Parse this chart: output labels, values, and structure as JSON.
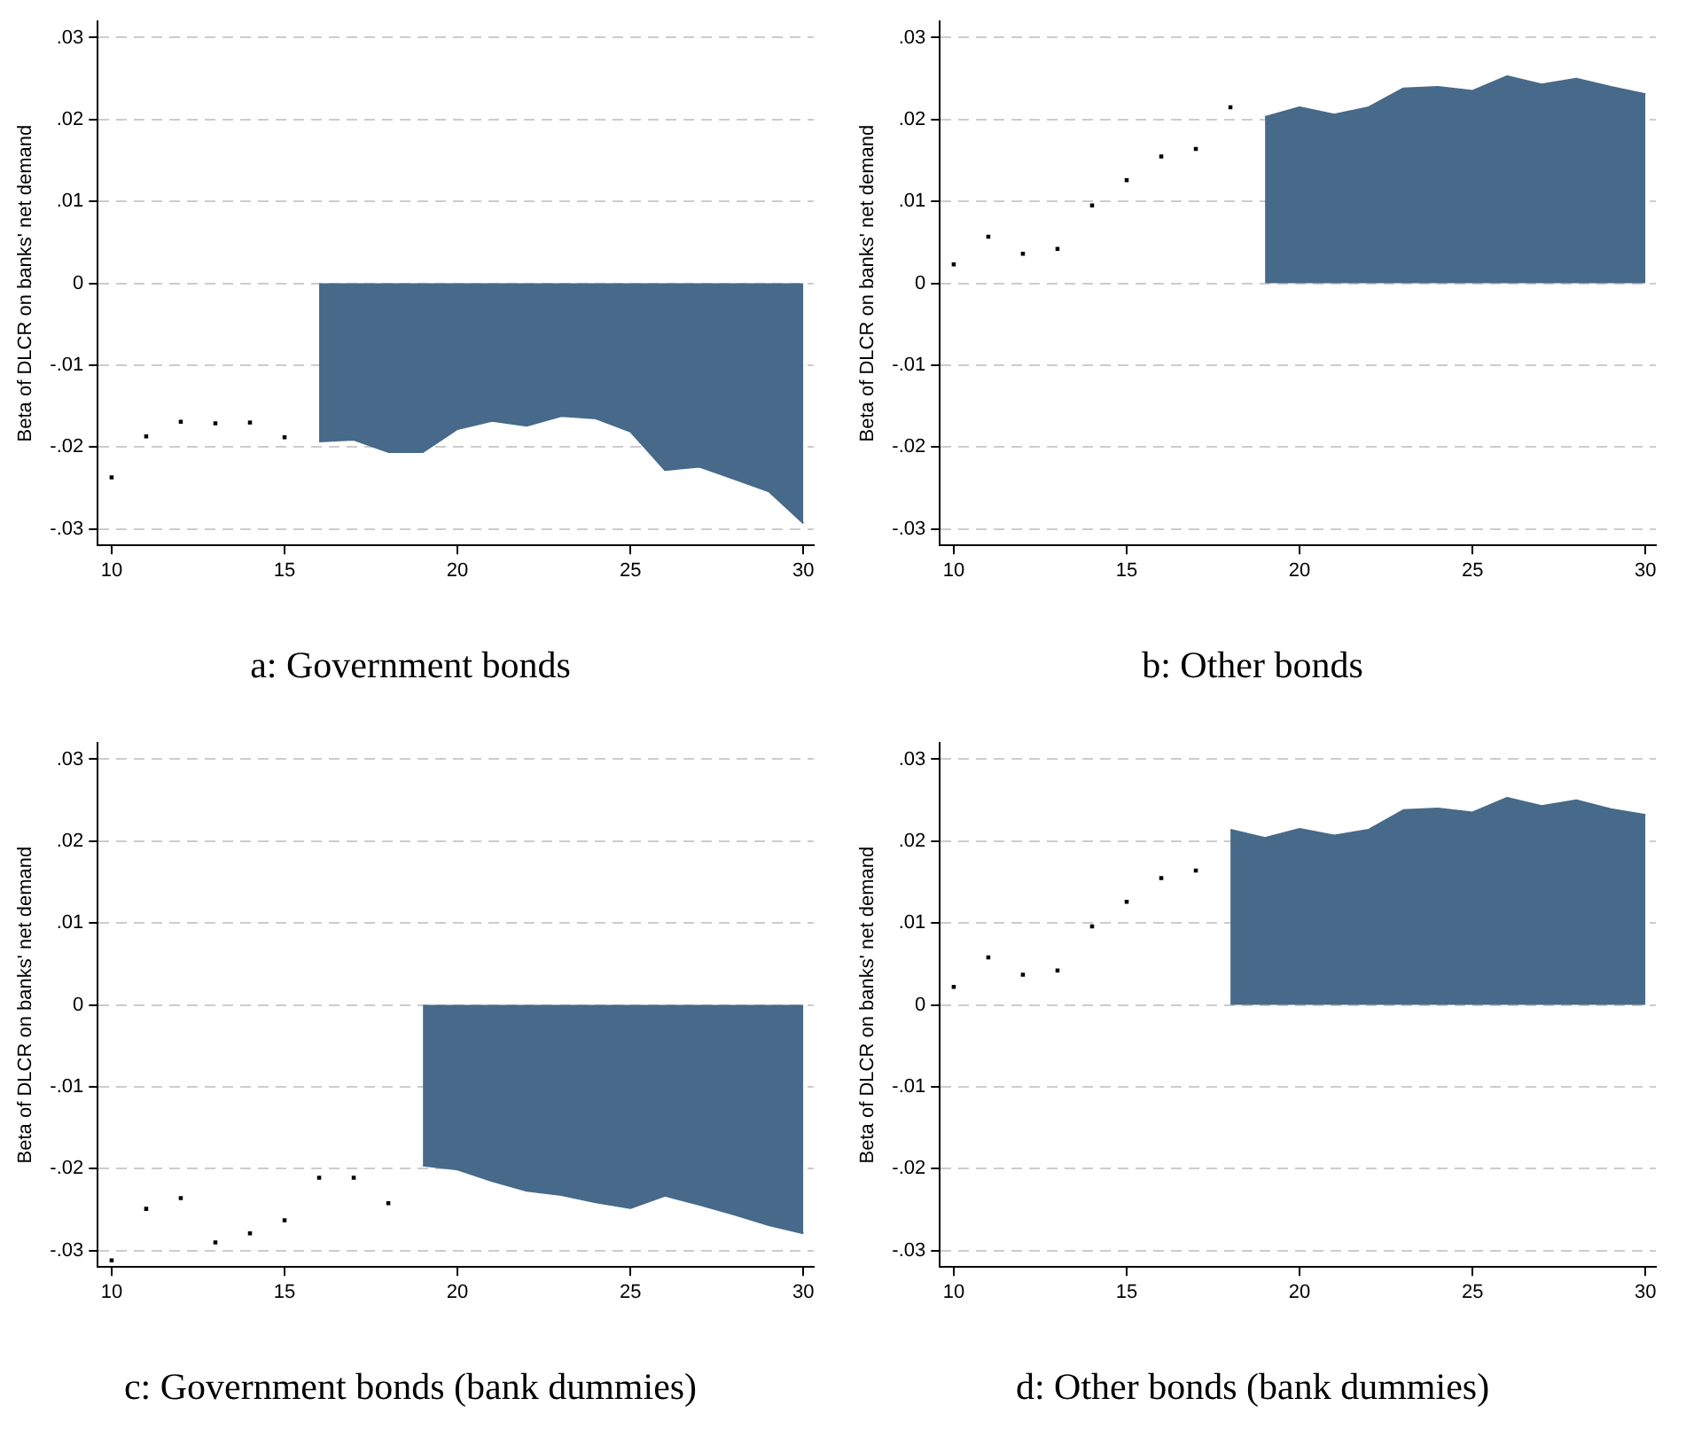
{
  "chart_data": [
    {
      "type": "area",
      "title": "a: Government bonds",
      "ylabel": "Beta of DLCR on banks' net demand",
      "xlim": [
        9.6,
        30.3
      ],
      "xticks": [
        10,
        15,
        20,
        25,
        30
      ],
      "ylim": [
        -0.032,
        0.032
      ],
      "yticks": [
        {
          "value": -0.03,
          "label": "-.03"
        },
        {
          "value": -0.02,
          "label": "-.02"
        },
        {
          "value": -0.01,
          "label": "-.01"
        },
        {
          "value": 0,
          "label": "0"
        },
        {
          "value": 0.01,
          "label": ".01"
        },
        {
          "value": 0.02,
          "label": ".02"
        },
        {
          "value": 0.03,
          "label": ".03"
        }
      ],
      "grid": "y",
      "series": [
        {
          "type": "scatter",
          "marker": "square",
          "color": "#000000",
          "x": [
            10,
            11,
            12,
            13,
            14,
            15
          ],
          "values": [
            -0.0237,
            -0.0187,
            -0.0169,
            -0.0171,
            -0.017,
            -0.0188
          ]
        },
        {
          "type": "area",
          "color": "#476a8a",
          "x": [
            16,
            17,
            18,
            19,
            20,
            21,
            22,
            23,
            24,
            25,
            26,
            27,
            28,
            29,
            30
          ],
          "values": [
            -0.0193,
            -0.0191,
            -0.0206,
            -0.0206,
            -0.0178,
            -0.0168,
            -0.0174,
            -0.0162,
            -0.0165,
            -0.0181,
            -0.0228,
            -0.0224,
            -0.0239,
            -0.0254,
            -0.0293
          ]
        }
      ]
    },
    {
      "type": "area",
      "title": "b: Other bonds",
      "ylabel": "Beta of DLCR on banks' net demand",
      "xlim": [
        9.6,
        30.3
      ],
      "xticks": [
        10,
        15,
        20,
        25,
        30
      ],
      "ylim": [
        -0.032,
        0.032
      ],
      "yticks": [
        {
          "value": -0.03,
          "label": "-.03"
        },
        {
          "value": -0.02,
          "label": "-.02"
        },
        {
          "value": -0.01,
          "label": "-.01"
        },
        {
          "value": 0,
          "label": "0"
        },
        {
          "value": 0.01,
          "label": ".01"
        },
        {
          "value": 0.02,
          "label": ".02"
        },
        {
          "value": 0.03,
          "label": ".03"
        }
      ],
      "grid": "y",
      "series": [
        {
          "type": "scatter",
          "marker": "square",
          "color": "#000000",
          "x": [
            10,
            11,
            12,
            13,
            14,
            15,
            16,
            17,
            18
          ],
          "values": [
            0.0023,
            0.0057,
            0.0036,
            0.0042,
            0.0095,
            0.0126,
            0.0155,
            0.0164,
            0.0215
          ]
        },
        {
          "type": "area",
          "color": "#476a8a",
          "x": [
            19,
            20,
            21,
            22,
            23,
            24,
            25,
            26,
            27,
            28,
            29,
            30
          ],
          "values": [
            0.0203,
            0.0215,
            0.0206,
            0.0215,
            0.0238,
            0.024,
            0.0235,
            0.0253,
            0.0243,
            0.025,
            0.024,
            0.0231
          ]
        }
      ]
    },
    {
      "type": "area",
      "title": "c: Government bonds (bank dummies)",
      "ylabel": "Beta of DLCR on banks' net demand",
      "xlim": [
        9.6,
        30.3
      ],
      "xticks": [
        10,
        15,
        20,
        25,
        30
      ],
      "ylim": [
        -0.032,
        0.032
      ],
      "yticks": [
        {
          "value": -0.03,
          "label": "-.03"
        },
        {
          "value": -0.02,
          "label": "-.02"
        },
        {
          "value": -0.01,
          "label": "-.01"
        },
        {
          "value": 0,
          "label": "0"
        },
        {
          "value": 0.01,
          "label": ".01"
        },
        {
          "value": 0.02,
          "label": ".02"
        },
        {
          "value": 0.03,
          "label": ".03"
        }
      ],
      "grid": "y",
      "series": [
        {
          "type": "scatter",
          "marker": "square",
          "color": "#000000",
          "x": [
            10,
            11,
            12,
            13,
            14,
            15,
            16,
            17,
            18
          ],
          "values": [
            -0.0312,
            -0.0249,
            -0.0236,
            -0.029,
            -0.0279,
            -0.0263,
            -0.0211,
            -0.0211,
            -0.0242
          ]
        },
        {
          "type": "area",
          "color": "#476a8a",
          "x": [
            19,
            20,
            21,
            22,
            23,
            24,
            25,
            26,
            27,
            28,
            29,
            30
          ],
          "values": [
            -0.0196,
            -0.0201,
            -0.0215,
            -0.0227,
            -0.0232,
            -0.0241,
            -0.0248,
            -0.0233,
            -0.0244,
            -0.0256,
            -0.0269,
            -0.0279
          ]
        }
      ]
    },
    {
      "type": "area",
      "title": "d: Other bonds (bank dummies)",
      "ylabel": "Beta of DLCR on banks' net demand",
      "xlim": [
        9.6,
        30.3
      ],
      "xticks": [
        10,
        15,
        20,
        25,
        30
      ],
      "ylim": [
        -0.032,
        0.032
      ],
      "yticks": [
        {
          "value": -0.03,
          "label": "-.03"
        },
        {
          "value": -0.02,
          "label": "-.02"
        },
        {
          "value": -0.01,
          "label": "-.01"
        },
        {
          "value": 0,
          "label": "0"
        },
        {
          "value": 0.01,
          "label": ".01"
        },
        {
          "value": 0.02,
          "label": ".02"
        },
        {
          "value": 0.03,
          "label": ".03"
        }
      ],
      "grid": "y",
      "series": [
        {
          "type": "scatter",
          "marker": "square",
          "color": "#000000",
          "x": [
            10,
            11,
            12,
            13,
            14,
            15,
            16,
            17
          ],
          "values": [
            0.0022,
            0.0058,
            0.0037,
            0.0042,
            0.0096,
            0.0126,
            0.0155,
            0.0164
          ]
        },
        {
          "type": "area",
          "color": "#476a8a",
          "x": [
            18,
            19,
            20,
            21,
            22,
            23,
            24,
            25,
            26,
            27,
            28,
            29,
            30
          ],
          "values": [
            0.0214,
            0.0204,
            0.0215,
            0.0207,
            0.0214,
            0.0238,
            0.024,
            0.0235,
            0.0253,
            0.0243,
            0.025,
            0.0239,
            0.0232
          ]
        }
      ]
    }
  ]
}
